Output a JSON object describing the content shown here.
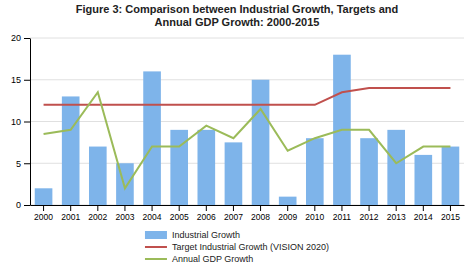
{
  "chart_data": {
    "type": "bar",
    "title": "Figure 3: Comparison between Industrial Growth, Targets and\nAnnual GDP Growth: 2000-2015",
    "categories": [
      "2000",
      "2001",
      "2002",
      "2003",
      "2004",
      "2005",
      "2006",
      "2007",
      "2008",
      "2009",
      "2010",
      "2011",
      "2012",
      "2013",
      "2014",
      "2015"
    ],
    "series": [
      {
        "name": "Industrial Growth",
        "type": "bar",
        "color": "#7EB4EA",
        "values": [
          2,
          13,
          7,
          5,
          16,
          9,
          9,
          7.5,
          15,
          1,
          8,
          18,
          8,
          9,
          6,
          7
        ]
      },
      {
        "name": "Target Industrial Growth (VISION 2020)",
        "type": "line",
        "color": "#C0504D",
        "values": [
          12,
          12,
          12,
          12,
          12,
          12,
          12,
          12,
          12,
          12,
          12,
          13.5,
          14,
          14,
          14,
          14
        ]
      },
      {
        "name": "Annual GDP Growth",
        "type": "line",
        "color": "#9BBB59",
        "values": [
          8.5,
          9,
          13.5,
          2,
          7,
          7,
          9.5,
          8,
          11.5,
          6.5,
          8,
          9,
          9,
          5,
          7,
          7
        ]
      }
    ],
    "ylim": [
      0,
      20
    ],
    "yticks": [
      0,
      5,
      10,
      15,
      20
    ],
    "grid": true,
    "legend": "bottom"
  }
}
